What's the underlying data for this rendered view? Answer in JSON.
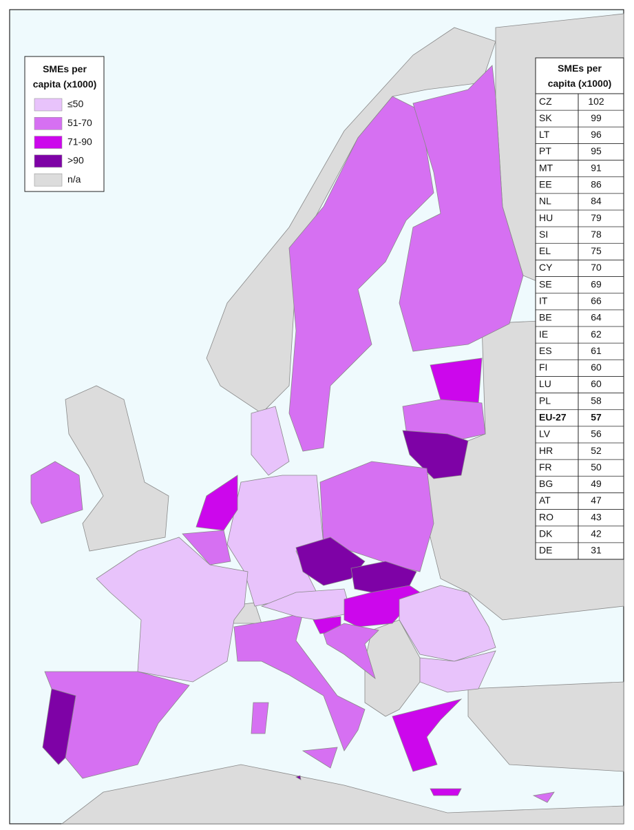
{
  "legend": {
    "title": "SMEs per capita (x1000)",
    "items": [
      {
        "label": "≤50",
        "color": "#e8c3fb"
      },
      {
        "label": "51-70",
        "color": "#d670f2"
      },
      {
        "label": "71-90",
        "color": "#cc07ec"
      },
      {
        "label": ">90",
        "color": "#7e02a6"
      },
      {
        "label": "n/a",
        "color": "#dcdcdc"
      }
    ]
  },
  "table": {
    "title": "SMEs per capita (x1000)",
    "rows": [
      {
        "code": "CZ",
        "value": 102
      },
      {
        "code": "SK",
        "value": 99
      },
      {
        "code": "LT",
        "value": 96
      },
      {
        "code": "PT",
        "value": 95
      },
      {
        "code": "MT",
        "value": 91
      },
      {
        "code": "EE",
        "value": 86
      },
      {
        "code": "NL",
        "value": 84
      },
      {
        "code": "HU",
        "value": 79
      },
      {
        "code": "SI",
        "value": 78
      },
      {
        "code": "EL",
        "value": 75
      },
      {
        "code": "CY",
        "value": 70
      },
      {
        "code": "SE",
        "value": 69
      },
      {
        "code": "IT",
        "value": 66
      },
      {
        "code": "BE",
        "value": 64
      },
      {
        "code": "IE",
        "value": 62
      },
      {
        "code": "ES",
        "value": 61
      },
      {
        "code": "FI",
        "value": 60
      },
      {
        "code": "LU",
        "value": 60
      },
      {
        "code": "PL",
        "value": 58
      },
      {
        "code": "EU-27",
        "value": 57,
        "highlight": true
      },
      {
        "code": "LV",
        "value": 56
      },
      {
        "code": "HR",
        "value": 52
      },
      {
        "code": "FR",
        "value": 50
      },
      {
        "code": "BG",
        "value": 49
      },
      {
        "code": "AT",
        "value": 47
      },
      {
        "code": "RO",
        "value": 43
      },
      {
        "code": "DK",
        "value": 42
      },
      {
        "code": "DE",
        "value": 31
      }
    ]
  }
}
